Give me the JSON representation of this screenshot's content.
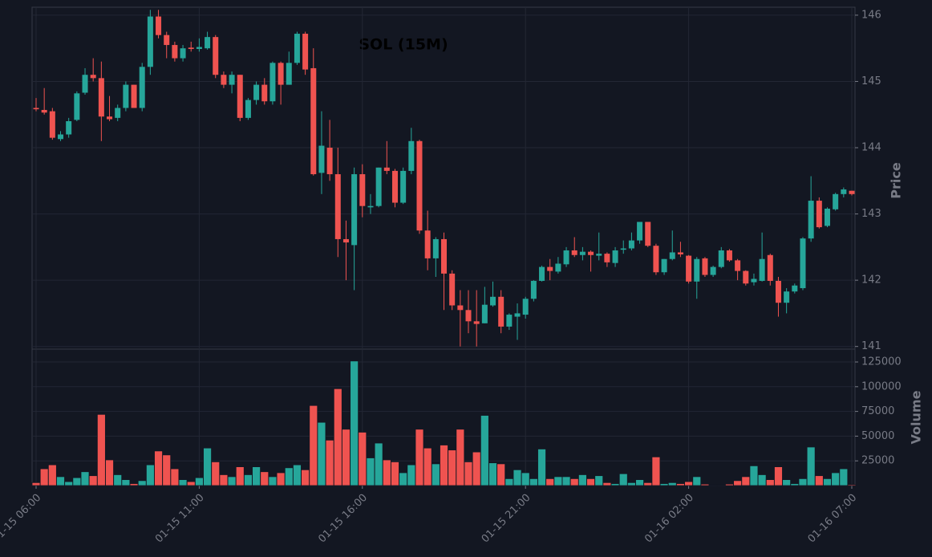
{
  "chart_data": [
    {
      "type": "candlestick",
      "title": "SOL (15M)",
      "ylabel": "Price",
      "up_color": "#26a69a",
      "down_color": "#ef5350",
      "grid": true,
      "x": [
        "01-15 06:00",
        null,
        null,
        null,
        null,
        null,
        null,
        null,
        null,
        null,
        null,
        null,
        null,
        null,
        null,
        null,
        null,
        null,
        null,
        null,
        "01-15 11:00",
        null,
        null,
        null,
        null,
        null,
        null,
        null,
        null,
        null,
        null,
        null,
        null,
        null,
        null,
        null,
        null,
        null,
        null,
        null,
        "01-15 16:00",
        null,
        null,
        null,
        null,
        null,
        null,
        null,
        null,
        null,
        null,
        null,
        null,
        null,
        null,
        null,
        null,
        null,
        null,
        null,
        "01-15 21:00",
        null,
        null,
        null,
        null,
        null,
        null,
        null,
        null,
        null,
        null,
        null,
        null,
        null,
        null,
        null,
        null,
        null,
        null,
        null,
        "01-16 02:00",
        null,
        null,
        null,
        null,
        null,
        null,
        null,
        null,
        null,
        null,
        null,
        null,
        null,
        null,
        null,
        null,
        null,
        null,
        null,
        "01-16 07:00"
      ],
      "open": [
        144.6,
        144.57,
        144.55,
        144.13,
        144.2,
        144.42,
        144.83,
        145.1,
        145.05,
        144.47,
        144.45,
        144.6,
        144.95,
        144.6,
        145.22,
        145.98,
        145.7,
        145.55,
        145.35,
        145.51,
        145.49,
        145.5,
        145.67,
        145.1,
        144.95,
        145.1,
        144.45,
        144.72,
        144.95,
        144.7,
        145.28,
        144.95,
        145.28,
        145.72,
        145.2,
        143.62,
        144.0,
        143.6,
        142.62,
        142.53,
        143.6,
        143.1,
        143.12,
        143.7,
        143.65,
        143.17,
        143.65,
        144.1,
        142.75,
        142.33,
        142.62,
        142.1,
        141.62,
        141.55,
        141.38,
        141.35,
        141.62,
        141.75,
        141.3,
        141.45,
        141.48,
        141.72,
        141.99,
        142.2,
        142.13,
        142.24,
        142.45,
        142.38,
        142.43,
        142.37,
        142.4,
        142.26,
        142.46,
        142.48,
        142.6,
        142.88,
        142.52,
        142.12,
        142.32,
        142.42,
        142.37,
        141.98,
        142.33,
        142.08,
        142.2,
        142.45,
        142.3,
        142.14,
        141.97,
        141.99,
        142.38,
        141.99,
        141.66,
        141.83,
        141.88,
        142.63,
        143.2,
        142.82,
        143.07,
        143.3,
        143.35
      ],
      "high": [
        144.75,
        144.9,
        144.6,
        144.25,
        144.45,
        144.85,
        145.2,
        145.35,
        145.3,
        144.78,
        144.65,
        145.0,
        144.95,
        145.28,
        146.08,
        146.08,
        145.75,
        145.6,
        145.55,
        145.6,
        145.65,
        145.75,
        145.7,
        145.15,
        145.15,
        145.1,
        144.75,
        145.0,
        145.05,
        145.3,
        145.3,
        145.45,
        145.75,
        145.75,
        145.5,
        144.55,
        144.42,
        144.0,
        142.9,
        143.7,
        143.75,
        143.3,
        143.7,
        144.1,
        143.68,
        143.7,
        144.3,
        144.12,
        143.05,
        142.65,
        142.72,
        142.15,
        141.85,
        141.85,
        141.85,
        141.9,
        141.98,
        141.85,
        141.5,
        141.65,
        141.75,
        142.0,
        142.22,
        142.32,
        142.35,
        142.5,
        142.65,
        142.5,
        142.45,
        142.72,
        142.42,
        142.5,
        142.6,
        142.72,
        142.88,
        142.88,
        142.55,
        142.32,
        142.75,
        142.58,
        142.38,
        142.35,
        142.35,
        142.22,
        142.5,
        142.47,
        142.32,
        142.15,
        142.1,
        142.72,
        142.4,
        142.05,
        141.88,
        141.95,
        142.65,
        143.57,
        143.25,
        143.1,
        143.32,
        143.4,
        143.35
      ],
      "low": [
        144.55,
        144.5,
        144.12,
        144.1,
        144.15,
        144.4,
        144.8,
        145.0,
        144.1,
        144.4,
        144.4,
        144.55,
        144.6,
        144.55,
        145.1,
        145.65,
        145.35,
        145.3,
        145.3,
        145.45,
        145.45,
        145.48,
        145.05,
        144.9,
        144.82,
        144.4,
        144.42,
        144.65,
        144.65,
        144.65,
        144.65,
        144.95,
        145.25,
        145.1,
        143.58,
        143.3,
        143.5,
        142.35,
        142.0,
        141.85,
        142.95,
        143.0,
        143.1,
        143.6,
        143.1,
        143.15,
        143.6,
        142.7,
        142.15,
        142.05,
        141.55,
        141.55,
        141.0,
        141.2,
        141.0,
        141.35,
        141.6,
        141.2,
        141.25,
        141.1,
        141.42,
        141.68,
        141.98,
        142.0,
        142.1,
        142.2,
        142.35,
        142.3,
        142.13,
        142.3,
        142.2,
        142.2,
        142.4,
        142.45,
        142.55,
        142.5,
        142.08,
        142.08,
        142.3,
        142.35,
        141.95,
        141.72,
        142.05,
        142.05,
        142.18,
        142.28,
        142.0,
        141.92,
        141.92,
        141.98,
        141.92,
        141.45,
        141.5,
        141.8,
        141.85,
        142.58,
        142.78,
        142.8,
        143.05,
        143.25,
        143.28
      ],
      "close": [
        144.58,
        144.53,
        144.15,
        144.2,
        144.4,
        144.82,
        145.1,
        145.05,
        144.47,
        144.43,
        144.6,
        144.95,
        144.6,
        145.22,
        145.98,
        145.7,
        145.55,
        145.35,
        145.5,
        145.49,
        145.52,
        145.67,
        145.1,
        144.95,
        145.1,
        144.45,
        144.72,
        144.95,
        144.7,
        145.28,
        144.95,
        145.28,
        145.72,
        145.18,
        143.6,
        144.03,
        143.6,
        142.62,
        142.57,
        143.6,
        143.12,
        143.12,
        143.7,
        143.65,
        143.17,
        143.65,
        144.1,
        142.75,
        142.33,
        142.62,
        142.1,
        141.62,
        141.55,
        141.38,
        141.34,
        141.63,
        141.75,
        141.3,
        141.48,
        141.5,
        141.72,
        141.99,
        142.2,
        142.14,
        142.25,
        142.45,
        142.38,
        142.43,
        142.38,
        142.4,
        142.27,
        142.45,
        142.48,
        142.6,
        142.88,
        142.52,
        142.12,
        142.32,
        142.42,
        142.39,
        141.98,
        142.32,
        142.08,
        142.2,
        142.45,
        142.3,
        142.14,
        141.95,
        142.02,
        142.32,
        141.99,
        141.66,
        141.83,
        141.92,
        142.63,
        143.2,
        142.8,
        143.08,
        143.3,
        143.37,
        143.3
      ],
      "ylim": [
        140.96,
        146.12
      ],
      "yticks": [
        141,
        142,
        143,
        144,
        145,
        146
      ]
    },
    {
      "type": "bar",
      "ylabel": "Volume",
      "grid": true,
      "values": [
        3000,
        17000,
        21000,
        9000,
        4000,
        8000,
        14000,
        10000,
        72000,
        26000,
        11000,
        6000,
        2000,
        5000,
        21000,
        35000,
        31000,
        17000,
        6000,
        4000,
        8000,
        38000,
        24000,
        11000,
        9000,
        19000,
        11000,
        19000,
        14000,
        9000,
        13000,
        18000,
        21000,
        16000,
        81000,
        64000,
        46000,
        98000,
        57000,
        126000,
        54000,
        28000,
        43000,
        26000,
        24000,
        13000,
        21000,
        57000,
        38000,
        22000,
        41000,
        36000,
        57000,
        24000,
        34000,
        71000,
        23000,
        22000,
        7000,
        16000,
        13000,
        7000,
        37000,
        7000,
        9000,
        9000,
        7000,
        11000,
        7000,
        10000,
        3000,
        2000,
        12000,
        3000,
        6000,
        3000,
        29000,
        2000,
        3000,
        2000,
        4000,
        9000,
        1500,
        500,
        500,
        1500,
        5000,
        9000,
        20000,
        11000,
        6000,
        19000,
        6000,
        2000,
        7000,
        39000,
        10000,
        7000,
        13000,
        17000,
        1000
      ],
      "ylim": [
        0,
        138000
      ],
      "yticks": [
        25000,
        50000,
        75000,
        100000,
        125000
      ]
    }
  ]
}
